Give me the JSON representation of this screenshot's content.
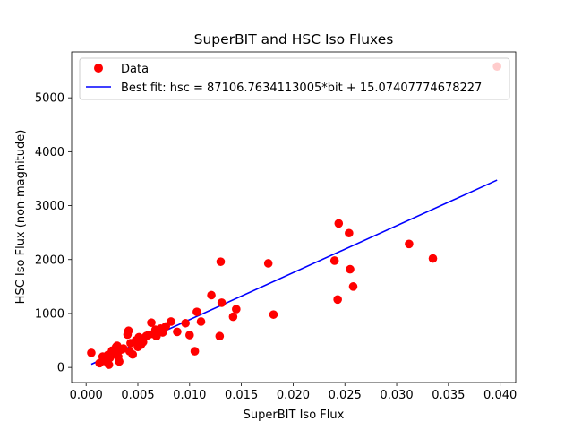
{
  "chart_data": {
    "type": "scatter",
    "title": "SuperBIT and HSC Iso Fluxes",
    "xlabel": "SuperBIT Iso Flux",
    "ylabel": "HSC Iso Flux (non-magnitude)",
    "xlim": [
      -0.0014,
      0.0415
    ],
    "ylim": [
      -280,
      5850
    ],
    "xticks": [
      0.0,
      0.005,
      0.01,
      0.015,
      0.02,
      0.025,
      0.03,
      0.035,
      0.04
    ],
    "xtick_labels": [
      "0.000",
      "0.005",
      "0.010",
      "0.015",
      "0.020",
      "0.025",
      "0.030",
      "0.035",
      "0.040"
    ],
    "yticks": [
      0,
      1000,
      2000,
      3000,
      4000,
      5000
    ],
    "ytick_labels": [
      "0",
      "1000",
      "2000",
      "3000",
      "4000",
      "5000"
    ],
    "grid": false,
    "legend_position": "top-left",
    "colors": {
      "data": "#ff0000",
      "fit": "#0000ff"
    },
    "series": [
      {
        "name": "Data",
        "kind": "scatter",
        "x": [
          0.0005,
          0.0013,
          0.0016,
          0.0018,
          0.0021,
          0.0022,
          0.0023,
          0.0025,
          0.0027,
          0.0028,
          0.0029,
          0.003,
          0.0031,
          0.0032,
          0.0034,
          0.0036,
          0.004,
          0.0041,
          0.0042,
          0.0043,
          0.0045,
          0.0048,
          0.005,
          0.0051,
          0.0053,
          0.0055,
          0.0058,
          0.006,
          0.0063,
          0.0065,
          0.0067,
          0.0068,
          0.007,
          0.0072,
          0.0074,
          0.0077,
          0.0082,
          0.0088,
          0.0096,
          0.01,
          0.0105,
          0.0107,
          0.0111,
          0.0121,
          0.0129,
          0.013,
          0.0131,
          0.0142,
          0.0145,
          0.0176,
          0.0181,
          0.024,
          0.0243,
          0.0244,
          0.0254,
          0.0255,
          0.0258,
          0.0312,
          0.0335,
          0.0397
        ],
        "y": [
          270,
          80,
          200,
          120,
          230,
          50,
          180,
          310,
          280,
          260,
          380,
          400,
          200,
          110,
          330,
          350,
          610,
          680,
          300,
          450,
          240,
          500,
          380,
          560,
          420,
          470,
          580,
          600,
          830,
          620,
          700,
          580,
          660,
          720,
          650,
          760,
          850,
          660,
          820,
          600,
          300,
          1030,
          850,
          1340,
          580,
          1960,
          1200,
          940,
          1080,
          1930,
          980,
          1980,
          1260,
          2670,
          2490,
          1820,
          1500,
          2290,
          2020,
          5580
        ]
      },
      {
        "name": "Best fit: hsc = 87106.7634113005*bit + 15.07407774678227",
        "kind": "line",
        "slope": 87106.7634113005,
        "intercept": 15.07407774678227,
        "x": [
          0.0005,
          0.0397
        ]
      }
    ]
  }
}
